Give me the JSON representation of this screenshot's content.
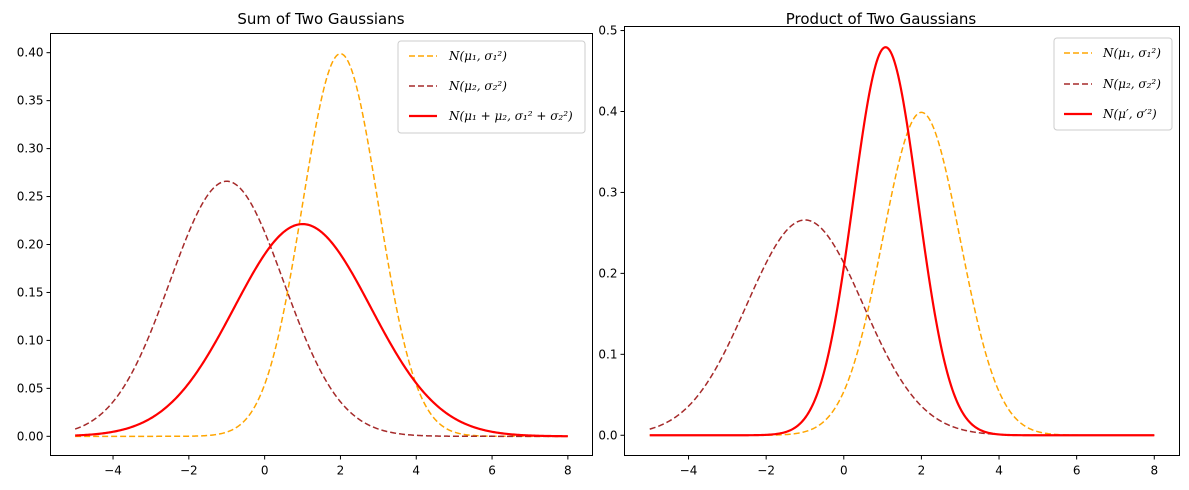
{
  "chart_data": [
    {
      "type": "line",
      "title": "Sum of Two Gaussians",
      "xlabel": "",
      "ylabel": "",
      "xlim": [
        -5.65,
        8.65
      ],
      "ylim": [
        -0.02,
        0.42
      ],
      "xticks": [
        -4,
        -2,
        0,
        2,
        4,
        6,
        8
      ],
      "xtick_labels": [
        "−4",
        "−2",
        "0",
        "2",
        "4",
        "6",
        "8"
      ],
      "yticks": [
        0,
        0.05,
        0.1,
        0.15,
        0.2,
        0.25,
        0.3,
        0.35,
        0.4
      ],
      "ytick_labels": [
        "0.00",
        "0.05",
        "0.10",
        "0.15",
        "0.20",
        "0.25",
        "0.30",
        "0.35",
        "0.40"
      ],
      "x_range": [
        -5,
        8
      ],
      "legend_position": "top-right",
      "series": [
        {
          "name": "N(μ₁, σ₁²)",
          "mu": 2,
          "sigma": 1,
          "color": "#ffa500",
          "style": "dashed",
          "width": 1.5
        },
        {
          "name": "N(μ₂, σ₂²)",
          "mu": -1,
          "sigma": 1.5,
          "color": "#a52a2a",
          "style": "dashed",
          "width": 1.5
        },
        {
          "name": "N(μ₁ + μ₂, σ₁² + σ₂²)",
          "mu": 1,
          "sigma": 1.8028,
          "color": "#ff0000",
          "style": "solid",
          "width": 2.2
        }
      ]
    },
    {
      "type": "line",
      "title": "Product of Two Gaussians",
      "xlabel": "",
      "ylabel": "",
      "xlim": [
        -5.65,
        8.65
      ],
      "ylim": [
        -0.025,
        0.505
      ],
      "xticks": [
        -4,
        -2,
        0,
        2,
        4,
        6,
        8
      ],
      "xtick_labels": [
        "−4",
        "−2",
        "0",
        "2",
        "4",
        "6",
        "8"
      ],
      "yticks": [
        0,
        0.1,
        0.2,
        0.3,
        0.4,
        0.5
      ],
      "ytick_labels": [
        "0.0",
        "0.1",
        "0.2",
        "0.3",
        "0.4",
        "0.5"
      ],
      "x_range": [
        -5,
        8
      ],
      "legend_position": "top-right",
      "series": [
        {
          "name": "N(μ₁, σ₁²)",
          "mu": 2,
          "sigma": 1,
          "color": "#ffa500",
          "style": "dashed",
          "width": 1.5
        },
        {
          "name": "N(μ₂, σ₂²)",
          "mu": -1,
          "sigma": 1.5,
          "color": "#a52a2a",
          "style": "dashed",
          "width": 1.5
        },
        {
          "name": "N(μ′, σ′²)",
          "mu": 1.0769,
          "sigma": 0.8321,
          "color": "#ff0000",
          "style": "solid",
          "width": 2.2
        }
      ]
    }
  ]
}
